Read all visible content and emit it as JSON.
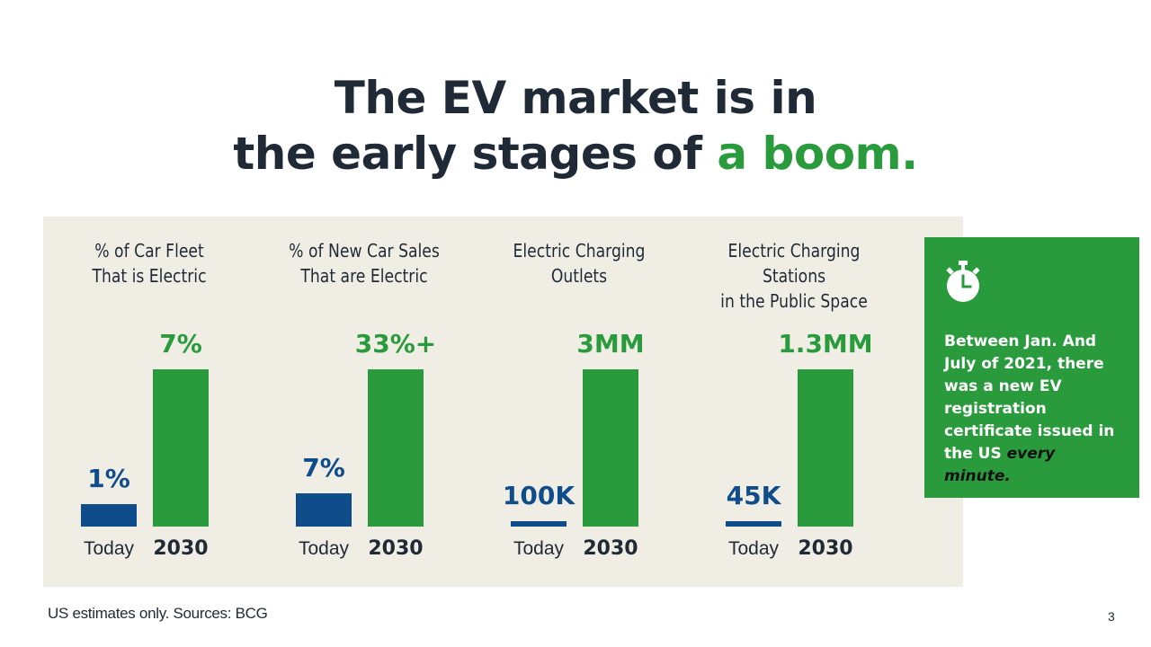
{
  "title": {
    "line1": "The EV market is in",
    "line2_prefix": "the early stages of ",
    "line2_accent": "a boom."
  },
  "colors": {
    "today": "#0f4c8a",
    "target_2030": "#2a9b3c",
    "panel_bg": "#f0eee4",
    "title_text": "#1f2a36"
  },
  "chart_data": [
    {
      "type": "bar",
      "title": "% of Car Fleet That is Electric",
      "title_line1": "% of Car Fleet",
      "title_line2": "That is Electric",
      "categories": [
        "Today",
        "2030"
      ],
      "values": [
        1,
        7
      ],
      "labels": [
        "1%",
        "7%"
      ],
      "unit": "%"
    },
    {
      "type": "bar",
      "title": "% of New Car Sales That are Electric",
      "title_line1": "% of New Car Sales",
      "title_line2": "That are Electric",
      "categories": [
        "Today",
        "2030"
      ],
      "values": [
        7,
        33
      ],
      "labels": [
        "7%",
        "33%+"
      ],
      "unit": "%"
    },
    {
      "type": "bar",
      "title": "Electric Charging Outlets",
      "title_line1": "Electric Charging",
      "title_line2": "Outlets",
      "categories": [
        "Today",
        "2030"
      ],
      "values": [
        100000,
        3000000
      ],
      "labels": [
        "100K",
        "3MM"
      ],
      "unit": "outlets"
    },
    {
      "type": "bar",
      "title": "Electric Charging Stations in the Public Space",
      "title_line1": "Electric Charging Stations",
      "title_line2": "in the Public Space",
      "categories": [
        "Today",
        "2030"
      ],
      "values": [
        45000,
        1300000
      ],
      "labels": [
        "45K",
        "1.3MM"
      ],
      "unit": "stations"
    }
  ],
  "callout": {
    "icon": "stopwatch-icon",
    "text": "Between Jan.  And July of 2021, there was a new EV registration certificate issued in the US ",
    "emphasis": "every minute."
  },
  "footnote": "US estimates only. Sources: BCG",
  "page_number": "3"
}
